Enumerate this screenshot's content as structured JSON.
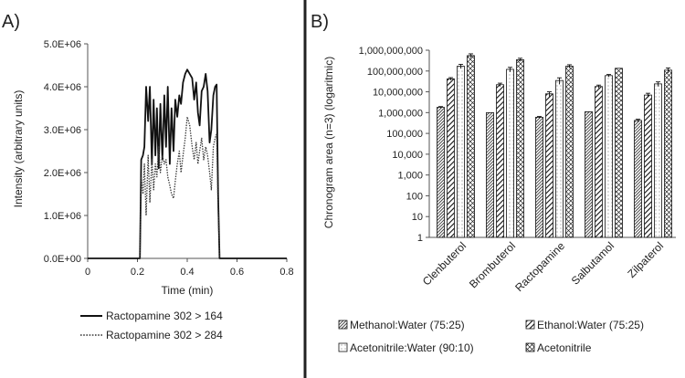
{
  "chart_data": [
    {
      "type": "line",
      "panel_label": "A)",
      "xlabel": "Time (min)",
      "ylabel": "Intensity (arbitrary units)",
      "xlim": [
        0,
        0.8
      ],
      "ylim": [
        0,
        5000000
      ],
      "xticks": [
        "0",
        "0.2",
        "0.4",
        "0.6",
        "0.8"
      ],
      "xtick_values": [
        0,
        0.2,
        0.4,
        0.6,
        0.8
      ],
      "yticks": [
        "0.0E+00",
        "1.0E+06",
        "2.0E+06",
        "3.0E+06",
        "4.0E+06",
        "5.0E+06"
      ],
      "ytick_values": [
        0,
        1000000,
        2000000,
        3000000,
        4000000,
        5000000
      ],
      "grid": false,
      "legend_position": "bottom",
      "series": [
        {
          "name": "Ractopamine 302 > 164",
          "style": "solid",
          "x": [
            0.0,
            0.21,
            0.215,
            0.222,
            0.228,
            0.235,
            0.243,
            0.25,
            0.258,
            0.265,
            0.272,
            0.278,
            0.285,
            0.292,
            0.3,
            0.308,
            0.315,
            0.322,
            0.33,
            0.337,
            0.345,
            0.352,
            0.36,
            0.368,
            0.375,
            0.383,
            0.392,
            0.4,
            0.41,
            0.42,
            0.428,
            0.436,
            0.443,
            0.45,
            0.458,
            0.466,
            0.474,
            0.482,
            0.49,
            0.497,
            0.505,
            0.512,
            0.518,
            0.524,
            0.53,
            0.8
          ],
          "y": [
            0,
            0,
            2300000,
            2400000,
            2600000,
            4000000,
            3200000,
            4000000,
            2200000,
            3700000,
            2400000,
            3500000,
            2100000,
            3600000,
            2300000,
            3800000,
            2600000,
            4000000,
            2200000,
            3500000,
            2500000,
            3700000,
            3300000,
            3800000,
            3600000,
            4100000,
            4300000,
            4400000,
            4300000,
            4200000,
            3700000,
            4100000,
            3400000,
            3100000,
            3900000,
            4000000,
            4300000,
            3900000,
            2700000,
            3000000,
            3800000,
            4000000,
            4050000,
            1500000,
            0,
            0
          ]
        },
        {
          "name": "Ractopamine 302 > 284",
          "style": "dotted",
          "x": [
            0.21,
            0.215,
            0.222,
            0.228,
            0.235,
            0.243,
            0.25,
            0.258,
            0.265,
            0.272,
            0.278,
            0.285,
            0.292,
            0.3,
            0.308,
            0.315,
            0.322,
            0.33,
            0.337,
            0.345,
            0.352,
            0.36,
            0.368,
            0.375,
            0.383,
            0.392,
            0.4,
            0.41,
            0.42,
            0.428,
            0.436,
            0.443,
            0.45,
            0.458,
            0.466,
            0.474,
            0.482,
            0.49,
            0.497,
            0.505,
            0.512,
            0.518,
            0.524,
            0.53
          ],
          "y": [
            0,
            1900000,
            1500000,
            2200000,
            1000000,
            2400000,
            1300000,
            2300000,
            1600000,
            2200000,
            1900000,
            2600000,
            2000000,
            2400000,
            2200000,
            2300000,
            1900000,
            1700000,
            1500000,
            1400000,
            1800000,
            2200000,
            2500000,
            2000000,
            2400000,
            2800000,
            3300000,
            3100000,
            2600000,
            2300000,
            2700000,
            2200000,
            2500000,
            2800000,
            2300000,
            2600000,
            2400000,
            2000000,
            1600000,
            2600000,
            2800000,
            2900000,
            1200000,
            0
          ]
        }
      ]
    },
    {
      "type": "bar",
      "panel_label": "B)",
      "ylabel": "Chronogram area (n=3) (logaritmic)",
      "yscale": "log",
      "ylim": [
        1,
        1000000000
      ],
      "yticks": [
        "1",
        "10",
        "100",
        "1,000",
        "10,000",
        "100,000",
        "1,000,000",
        "10,000,000",
        "100,000,000",
        "1,000,000,000"
      ],
      "ytick_values": [
        1,
        10,
        100,
        1000,
        10000,
        100000,
        1000000,
        10000000,
        100000000,
        1000000000
      ],
      "grid": false,
      "legend_position": "bottom",
      "categories": [
        "Clenbuterol",
        "Brombuterol",
        "Ractopamine",
        "Salbutamol",
        "Zilpaterol"
      ],
      "series": [
        {
          "name": "Methanol:Water (75:25)",
          "pattern": "diagonal-dense",
          "values": [
            1800000,
            1000000,
            600000,
            1100000,
            420000
          ],
          "errors": [
            150000,
            0,
            50000,
            0,
            60000
          ]
        },
        {
          "name": "Ethanol:Water (75:25)",
          "pattern": "diagonal-wide",
          "values": [
            42000000,
            22000000,
            8000000,
            18000000,
            7000000
          ],
          "errors": [
            6000000,
            4000000,
            2000000,
            3000000,
            1500000
          ]
        },
        {
          "name": "Acetonitrile:Water (90:10)",
          "pattern": "dotted",
          "values": [
            170000000,
            120000000,
            35000000,
            60000000,
            24000000
          ],
          "errors": [
            40000000,
            30000000,
            12000000,
            8000000,
            6000000
          ]
        },
        {
          "name": "Acetonitrile",
          "pattern": "crosshatch",
          "values": [
            550000000,
            350000000,
            170000000,
            135000000,
            110000000
          ],
          "errors": [
            120000000,
            60000000,
            30000000,
            0,
            30000000
          ]
        }
      ]
    }
  ]
}
